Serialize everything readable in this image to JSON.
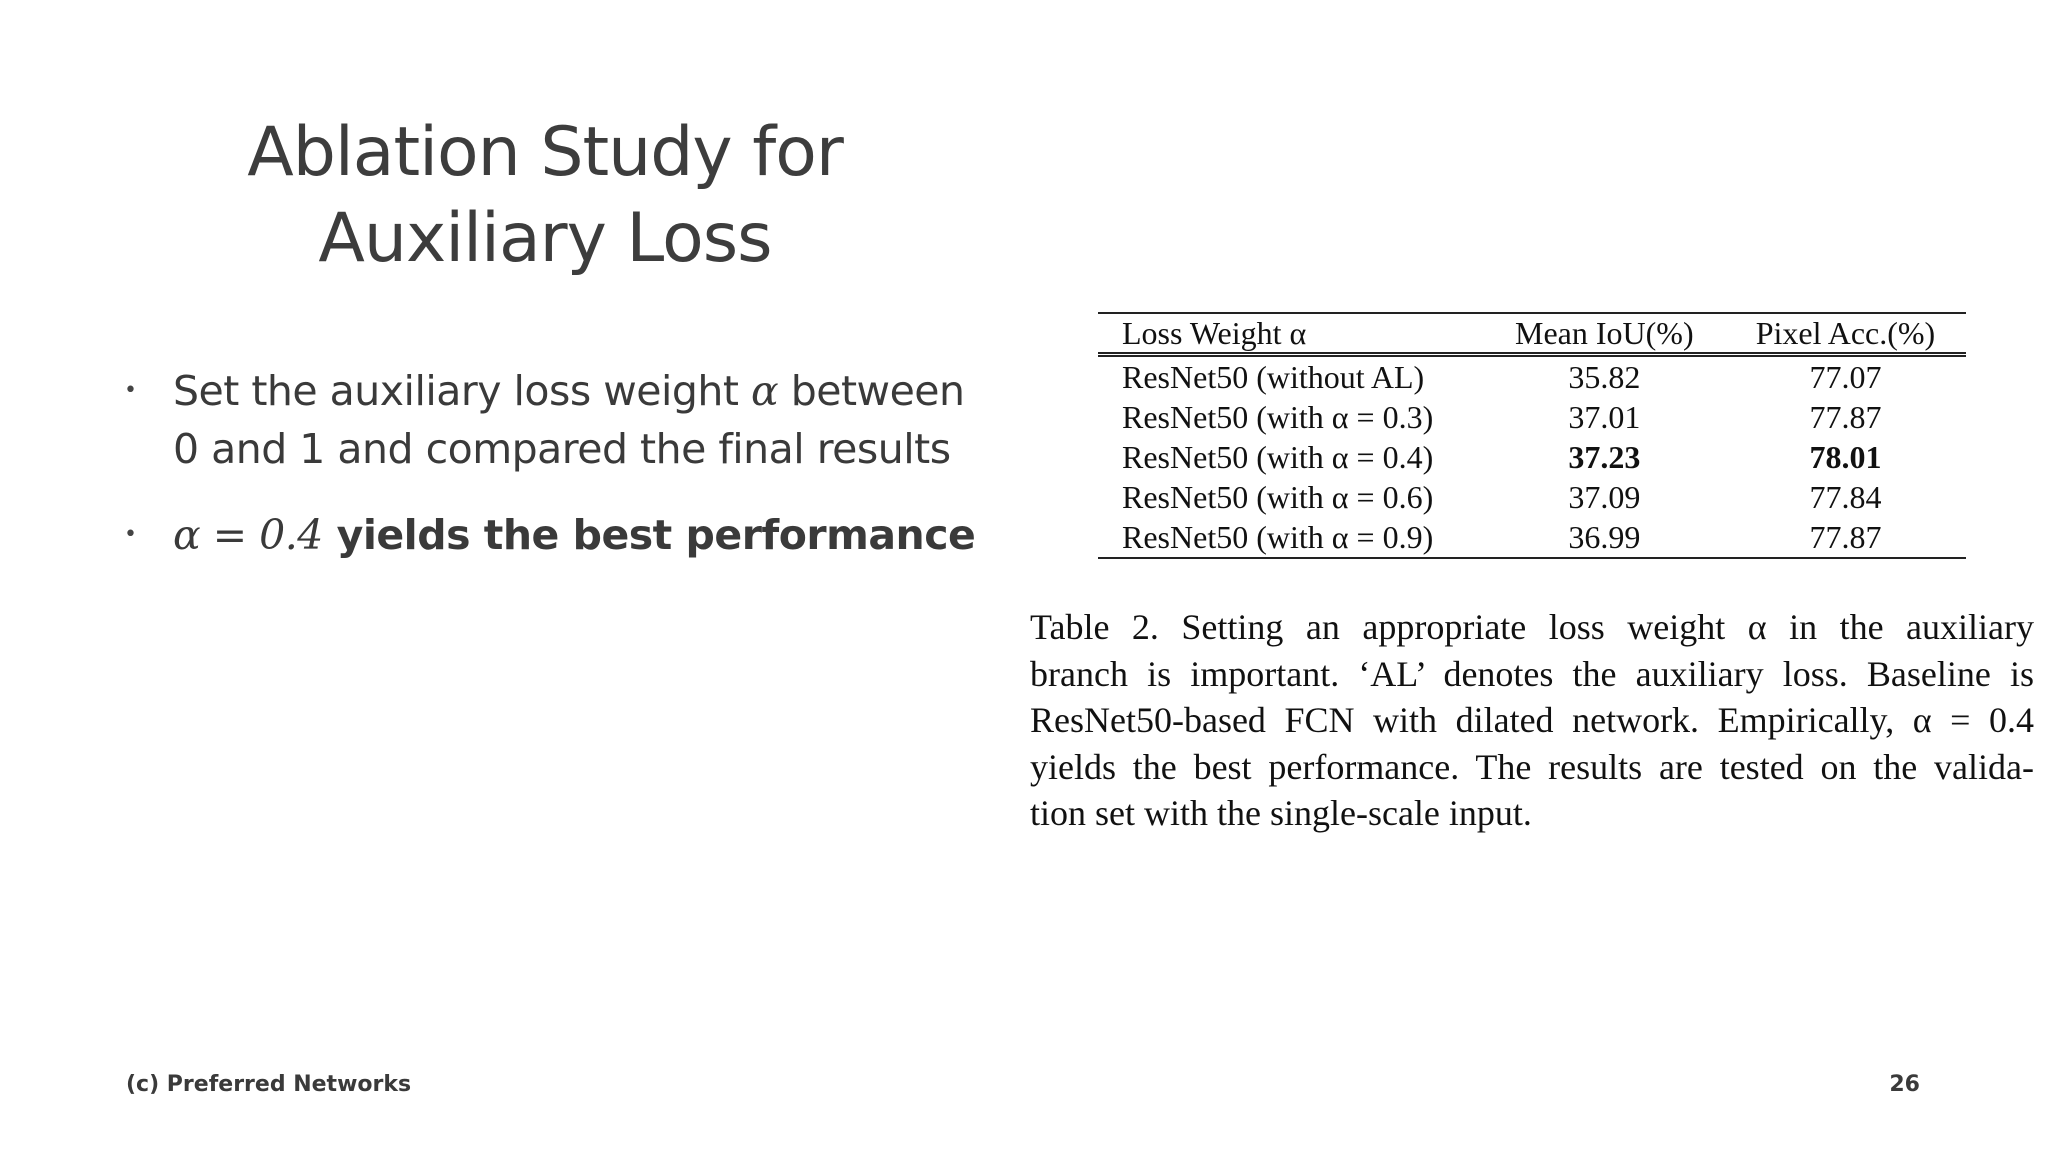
{
  "slide": {
    "title_line1": "Ablation Study for",
    "title_line2": "Auxiliary Loss",
    "bullets": [
      {
        "line1_pre": "Set the auxiliary loss weight ",
        "line1_math": "α",
        "line1_post": " between",
        "line2": "0 and 1 and compared the final results"
      },
      {
        "math": "α = 0.4",
        "text": " yields the best performance"
      }
    ],
    "footer_left": "(c) Preferred Networks",
    "page_number": "26"
  },
  "table": {
    "headers": [
      "Loss Weight α",
      "Mean IoU(%)",
      "Pixel Acc.(%)"
    ],
    "rows": [
      [
        "ResNet50 (without AL)",
        "35.82",
        "77.07"
      ],
      [
        "ResNet50 (with α = 0.3)",
        "37.01",
        "77.87"
      ],
      [
        "ResNet50 (with α = 0.4)",
        "37.23",
        "78.01"
      ],
      [
        "ResNet50 (with α = 0.6)",
        "37.09",
        "77.84"
      ],
      [
        "ResNet50 (with α = 0.9)",
        "36.99",
        "77.87"
      ]
    ],
    "caption_lines": [
      "Table 2. Setting an appropriate loss weight α in the auxiliary",
      "branch is important. ‘AL’ denotes the auxiliary loss. Baseline is",
      "ResNet50-based FCN with dilated network. Empirically, α = 0.4",
      "yields the best performance. The results are tested on the valida-",
      "tion set with the single-scale input."
    ]
  }
}
